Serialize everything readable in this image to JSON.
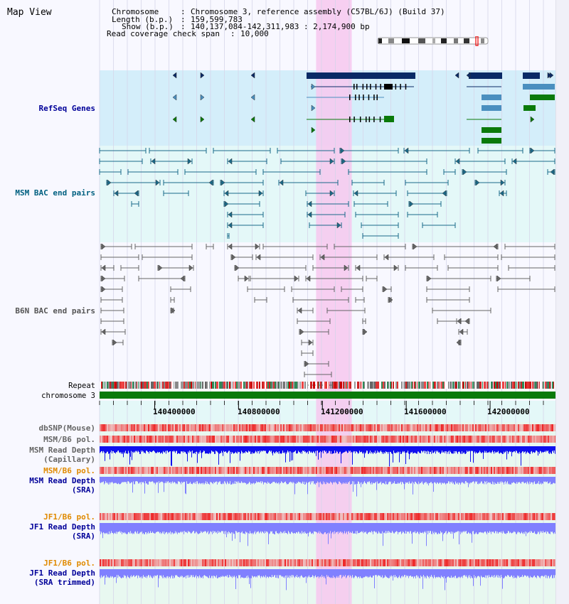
{
  "window": {
    "title": "Map View"
  },
  "header": {
    "chromosome_label": "Chromosome",
    "chromosome_value": "Chromosome 3, reference assembly (C57BL/6J) (Build 37)",
    "length_label": "Length (b.p.)",
    "length_value": "159,599,783",
    "show_label": "Show (b.p.)",
    "show_value": "140,137,084-142,311,983 : 2,174,900 bp",
    "coverage_label": "Read coverage check span",
    "coverage_value": "10,000"
  },
  "tracks": {
    "refseq": "RefSeq Genes",
    "msm_bac": "MSM BAC end pairs",
    "b6n_bac": "B6N BAC end pairs",
    "repeat": "Repeat",
    "chromosome": "chromosome 3",
    "dbsnp": "dbSNP(Mouse)",
    "msm_b6_pol_1": "MSM/B6 pol.",
    "msm_read_depth_cap": "MSM Read Depth",
    "msm_read_depth_cap_sub": "(Capillary)",
    "msm_b6_pol_2": "MSM/B6 pol.",
    "msm_read_depth_sra": "MSM Read Depth",
    "msm_read_depth_sra_sub": "(SRA)",
    "jf1_b6_pol_1": "JF1/B6 pol.",
    "jf1_read_depth_sra": "JF1 Read Depth",
    "jf1_read_depth_sra_sub": "(SRA)",
    "jf1_b6_pol_2": "JF1/B6 pol.",
    "jf1_read_depth_trim": "JF1 Read Depth",
    "jf1_read_depth_trim_sub": "(SRA trimmed)"
  },
  "ruler": {
    "range_bp": [
      140137084,
      142311983
    ],
    "labels": [
      "140400000",
      "140800000",
      "141200000",
      "141600000",
      "142000000"
    ],
    "label_values": [
      140400000,
      140800000,
      141200000,
      141600000,
      142000000
    ]
  },
  "highlight_bp": [
    141170000,
    141340000
  ],
  "colors": {
    "refseq_dark": "#0a2a66",
    "refseq_mid": "#4a8fbf",
    "refseq_green": "#0a7a0a",
    "msm_bac": "#1a6a8a",
    "b6n_bac": "#666666",
    "chromosome": "#0a7a0a",
    "highlight": "#f7c8ee",
    "label_blue": "#000099",
    "label_teal": "#006080",
    "label_orange": "#e08a00",
    "depth_capillary": "#1010ee",
    "depth_sra": "#8080ff",
    "snp_red": "#ee2020"
  }
}
